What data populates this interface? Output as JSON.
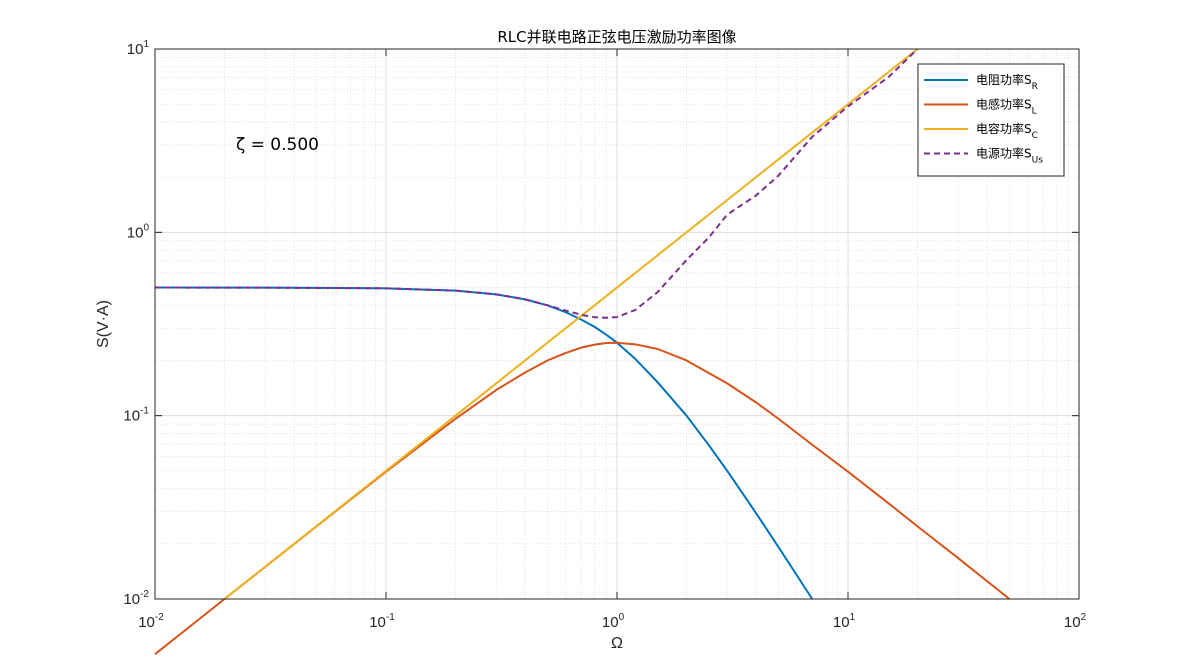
{
  "chart_data": {
    "type": "line",
    "title": "RLC并联电路正弦电压激励功率图像",
    "xlabel": "Ω",
    "ylabel": "S(V·A)",
    "xscale": "log",
    "yscale": "log",
    "xlim": [
      0.01,
      100
    ],
    "ylim": [
      0.01,
      10
    ],
    "grid": true,
    "minor_grid": true,
    "legend_position": "top-right",
    "annotation": "ζ = 0.500",
    "xticks": [
      {
        "base": "10",
        "exp": "-2",
        "value": 0.01
      },
      {
        "base": "10",
        "exp": "-1",
        "value": 0.1
      },
      {
        "base": "10",
        "exp": "0",
        "value": 1
      },
      {
        "base": "10",
        "exp": "1",
        "value": 10
      },
      {
        "base": "10",
        "exp": "2",
        "value": 100
      }
    ],
    "yticks": [
      {
        "base": "10",
        "exp": "-2",
        "value": 0.01
      },
      {
        "base": "10",
        "exp": "-1",
        "value": 0.1
      },
      {
        "base": "10",
        "exp": "0",
        "value": 1
      },
      {
        "base": "10",
        "exp": "1",
        "value": 10
      }
    ],
    "series": [
      {
        "name": "电阻功率S",
        "sub": "R",
        "color": "#0072BD",
        "dash": "solid",
        "points": [
          [
            0.01,
            0.5
          ],
          [
            0.03,
            0.499
          ],
          [
            0.05,
            0.4975
          ],
          [
            0.1,
            0.495
          ],
          [
            0.2,
            0.481
          ],
          [
            0.3,
            0.459
          ],
          [
            0.4,
            0.431
          ],
          [
            0.5,
            0.4
          ],
          [
            0.6,
            0.367
          ],
          [
            0.7,
            0.334
          ],
          [
            0.8,
            0.305
          ],
          [
            0.9,
            0.276
          ],
          [
            1,
            0.25
          ],
          [
            1.2,
            0.204
          ],
          [
            1.5,
            0.152
          ],
          [
            2,
            0.1
          ],
          [
            2.5,
            0.0689
          ],
          [
            3,
            0.05
          ],
          [
            4,
            0.0294
          ],
          [
            5,
            0.0192
          ],
          [
            6,
            0.0135
          ],
          [
            7,
            0.01
          ]
        ]
      },
      {
        "name": "电感功率S",
        "sub": "L",
        "color": "#D95319",
        "dash": "solid",
        "points": [
          [
            0.01,
            0.005
          ],
          [
            0.02,
            0.01
          ],
          [
            0.05,
            0.0249
          ],
          [
            0.1,
            0.0495
          ],
          [
            0.2,
            0.0962
          ],
          [
            0.3,
            0.138
          ],
          [
            0.4,
            0.172
          ],
          [
            0.5,
            0.2
          ],
          [
            0.6,
            0.22
          ],
          [
            0.7,
            0.235
          ],
          [
            0.8,
            0.244
          ],
          [
            0.9,
            0.249
          ],
          [
            1,
            0.25
          ],
          [
            1.2,
            0.245
          ],
          [
            1.5,
            0.231
          ],
          [
            2,
            0.2
          ],
          [
            3,
            0.15
          ],
          [
            4,
            0.118
          ],
          [
            5,
            0.0962
          ],
          [
            7,
            0.0694
          ],
          [
            10,
            0.0495
          ],
          [
            15,
            0.0332
          ],
          [
            20,
            0.0249
          ],
          [
            30,
            0.0167
          ],
          [
            50,
            0.01
          ]
        ]
      },
      {
        "name": "电容功率S",
        "sub": "C",
        "color": "#EDB120",
        "dash": "solid",
        "points": [
          [
            0.02,
            0.01
          ],
          [
            20,
            10
          ]
        ]
      },
      {
        "name": "电源功率S",
        "sub": "Us",
        "color": "#7E2F8E",
        "dash": "dashed",
        "points": [
          [
            0.01,
            0.5
          ],
          [
            0.03,
            0.499
          ],
          [
            0.05,
            0.4975
          ],
          [
            0.1,
            0.495
          ],
          [
            0.2,
            0.481
          ],
          [
            0.3,
            0.459
          ],
          [
            0.4,
            0.431
          ],
          [
            0.5,
            0.4
          ],
          [
            0.6,
            0.374
          ],
          [
            0.7,
            0.355
          ],
          [
            0.8,
            0.344
          ],
          [
            0.9,
            0.342
          ],
          [
            1,
            0.345
          ],
          [
            1.2,
            0.377
          ],
          [
            1.5,
            0.472
          ],
          [
            2,
            0.707
          ],
          [
            2.5,
            0.938
          ],
          [
            3,
            1.25
          ],
          [
            4,
            1.59
          ],
          [
            5,
            2.04
          ],
          [
            7,
            3.32
          ],
          [
            10,
            4.86
          ],
          [
            15,
            7.04
          ],
          [
            20,
            10
          ]
        ]
      }
    ]
  }
}
